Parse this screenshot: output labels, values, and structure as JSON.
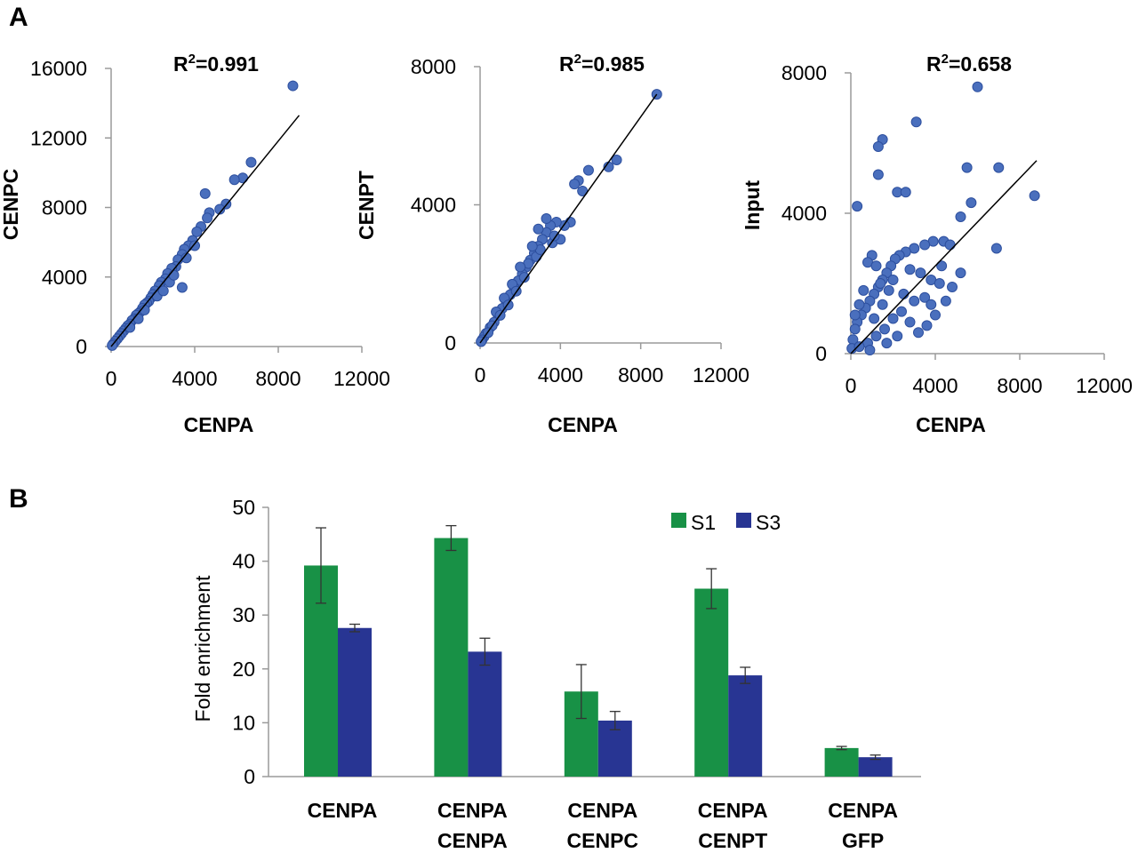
{
  "panels": {
    "a": "A",
    "b": "B"
  },
  "chart_data": [
    {
      "type": "scatter",
      "panel": "A",
      "title": "R",
      "title_sup": "2",
      "title_rest": "=0.991",
      "xlabel": "CENPA",
      "ylabel": "CENPC",
      "xlim": [
        0,
        12000
      ],
      "ylim": [
        0,
        16000
      ],
      "xticks": [
        "0",
        "4000",
        "8000",
        "12000"
      ],
      "yticks": [
        "0",
        "4000",
        "8000",
        "12000",
        "16000"
      ],
      "trendline": [
        [
          0,
          0
        ],
        [
          9000,
          13300
        ]
      ],
      "points": [
        [
          8700,
          15000
        ],
        [
          6700,
          10600
        ],
        [
          6300,
          9700
        ],
        [
          5900,
          9600
        ],
        [
          5500,
          8200
        ],
        [
          5200,
          7900
        ],
        [
          4700,
          7700
        ],
        [
          4500,
          8800
        ],
        [
          4600,
          7400
        ],
        [
          4300,
          6900
        ],
        [
          4100,
          6600
        ],
        [
          3900,
          6100
        ],
        [
          3700,
          5800
        ],
        [
          3500,
          5600
        ],
        [
          3400,
          5300
        ],
        [
          3200,
          5000
        ],
        [
          3100,
          4600
        ],
        [
          2900,
          4500
        ],
        [
          2700,
          4200
        ],
        [
          2600,
          3900
        ],
        [
          2400,
          3700
        ],
        [
          2300,
          3500
        ],
        [
          2100,
          3200
        ],
        [
          2000,
          3000
        ],
        [
          1900,
          2800
        ],
        [
          1800,
          2600
        ],
        [
          1700,
          2500
        ],
        [
          1600,
          2400
        ],
        [
          1500,
          2200
        ],
        [
          1400,
          2000
        ],
        [
          1300,
          1900
        ],
        [
          1200,
          1800
        ],
        [
          1100,
          1600
        ],
        [
          1000,
          1500
        ],
        [
          900,
          1300
        ],
        [
          800,
          1200
        ],
        [
          700,
          1050
        ],
        [
          600,
          900
        ],
        [
          500,
          750
        ],
        [
          400,
          600
        ],
        [
          300,
          450
        ],
        [
          200,
          300
        ],
        [
          100,
          150
        ],
        [
          50,
          60
        ],
        [
          3400,
          3400
        ],
        [
          2800,
          3700
        ],
        [
          3000,
          4100
        ],
        [
          3600,
          5100
        ],
        [
          2200,
          2900
        ],
        [
          1600,
          2100
        ],
        [
          900,
          1100
        ],
        [
          4000,
          5800
        ],
        [
          2500,
          3200
        ],
        [
          1300,
          1600
        ]
      ]
    },
    {
      "type": "scatter",
      "panel": "A",
      "title": "R",
      "title_sup": "2",
      "title_rest": "=0.985",
      "xlabel": "CENPA",
      "ylabel": "CENPT",
      "xlim": [
        0,
        12000
      ],
      "ylim": [
        0,
        8000
      ],
      "xticks": [
        "0",
        "4000",
        "8000",
        "12000"
      ],
      "yticks": [
        "0",
        "4000",
        "8000"
      ],
      "trendline": [
        [
          0,
          0
        ],
        [
          8800,
          7200
        ]
      ],
      "points": [
        [
          8800,
          7200
        ],
        [
          6800,
          5300
        ],
        [
          6400,
          5100
        ],
        [
          5400,
          5000
        ],
        [
          4900,
          4700
        ],
        [
          4700,
          4600
        ],
        [
          5100,
          4400
        ],
        [
          4500,
          3500
        ],
        [
          4200,
          3400
        ],
        [
          3800,
          3500
        ],
        [
          3500,
          3400
        ],
        [
          3300,
          3200
        ],
        [
          3100,
          3000
        ],
        [
          2900,
          2800
        ],
        [
          2700,
          2600
        ],
        [
          2500,
          2400
        ],
        [
          2300,
          2200
        ],
        [
          2100,
          2000
        ],
        [
          1900,
          1800
        ],
        [
          1700,
          1600
        ],
        [
          1500,
          1400
        ],
        [
          1300,
          1200
        ],
        [
          1100,
          1000
        ],
        [
          900,
          800
        ],
        [
          700,
          600
        ],
        [
          500,
          450
        ],
        [
          300,
          280
        ],
        [
          200,
          180
        ],
        [
          100,
          90
        ],
        [
          50,
          40
        ],
        [
          2900,
          3300
        ],
        [
          3300,
          3600
        ],
        [
          2800,
          2500
        ],
        [
          2400,
          2300
        ],
        [
          2000,
          2200
        ],
        [
          1600,
          1700
        ],
        [
          1200,
          1300
        ],
        [
          800,
          900
        ],
        [
          3600,
          2900
        ],
        [
          3000,
          2700
        ],
        [
          2600,
          2800
        ],
        [
          2200,
          1900
        ],
        [
          1800,
          1500
        ],
        [
          1400,
          1100
        ],
        [
          1000,
          800
        ],
        [
          600,
          500
        ],
        [
          400,
          300
        ],
        [
          4000,
          3000
        ],
        [
          3700,
          3100
        ]
      ]
    },
    {
      "type": "scatter",
      "panel": "A",
      "title": "R",
      "title_sup": "2",
      "title_rest": "=0.658",
      "xlabel": "CENPA",
      "ylabel": "Input",
      "xlim": [
        0,
        12000
      ],
      "ylim": [
        0,
        8000
      ],
      "xticks": [
        "0",
        "4000",
        "8000",
        "12000"
      ],
      "yticks": [
        "0",
        "4000",
        "8000"
      ],
      "trendline": [
        [
          0,
          0
        ],
        [
          8800,
          5500
        ]
      ],
      "points": [
        [
          6000,
          7600
        ],
        [
          3100,
          6600
        ],
        [
          1500,
          6100
        ],
        [
          1300,
          5900
        ],
        [
          1300,
          5100
        ],
        [
          5500,
          5300
        ],
        [
          7000,
          5300
        ],
        [
          2200,
          4600
        ],
        [
          2600,
          4600
        ],
        [
          300,
          4200
        ],
        [
          8700,
          4500
        ],
        [
          5700,
          4300
        ],
        [
          5200,
          3900
        ],
        [
          6900,
          3000
        ],
        [
          4400,
          3200
        ],
        [
          3900,
          3200
        ],
        [
          4700,
          3100
        ],
        [
          3500,
          3100
        ],
        [
          3000,
          3000
        ],
        [
          2600,
          2900
        ],
        [
          2300,
          2800
        ],
        [
          2100,
          2700
        ],
        [
          1900,
          2500
        ],
        [
          1700,
          2300
        ],
        [
          1500,
          2100
        ],
        [
          1300,
          1900
        ],
        [
          1100,
          1700
        ],
        [
          900,
          1500
        ],
        [
          700,
          1300
        ],
        [
          500,
          1100
        ],
        [
          300,
          900
        ],
        [
          200,
          700
        ],
        [
          100,
          400
        ],
        [
          50,
          150
        ],
        [
          1000,
          2800
        ],
        [
          800,
          2600
        ],
        [
          1200,
          2500
        ],
        [
          1800,
          1800
        ],
        [
          2800,
          2400
        ],
        [
          3300,
          2300
        ],
        [
          3800,
          2100
        ],
        [
          4200,
          2000
        ],
        [
          4800,
          1900
        ],
        [
          4500,
          1500
        ],
        [
          4000,
          1100
        ],
        [
          3600,
          800
        ],
        [
          3200,
          600
        ],
        [
          2800,
          900
        ],
        [
          2400,
          1200
        ],
        [
          2000,
          1000
        ],
        [
          1600,
          700
        ],
        [
          1200,
          500
        ],
        [
          800,
          300
        ],
        [
          400,
          200
        ],
        [
          1500,
          1400
        ],
        [
          2500,
          1700
        ],
        [
          3000,
          1500
        ],
        [
          3500,
          1600
        ],
        [
          5200,
          2300
        ],
        [
          600,
          1800
        ],
        [
          400,
          1400
        ],
        [
          1400,
          2000
        ],
        [
          2000,
          2100
        ],
        [
          200,
          1100
        ],
        [
          1100,
          1000
        ],
        [
          2200,
          500
        ],
        [
          1700,
          300
        ],
        [
          900,
          100
        ],
        [
          3800,
          1400
        ],
        [
          4300,
          2500
        ]
      ]
    },
    {
      "type": "bar",
      "panel": "B",
      "ylabel": "Fold enrichment",
      "ylim": [
        0,
        50
      ],
      "yticks": [
        "0",
        "10",
        "20",
        "30",
        "40",
        "50"
      ],
      "categories": [
        [
          "CENPA"
        ],
        [
          "CENPA",
          "CENPA"
        ],
        [
          "CENPA",
          "CENPC"
        ],
        [
          "CENPA",
          "CENPT"
        ],
        [
          "CENPA",
          "GFP"
        ]
      ],
      "series": [
        {
          "name": "S1",
          "color": "#189146",
          "values": [
            39.2,
            44.3,
            15.8,
            34.9,
            5.3
          ],
          "errors": [
            7.0,
            2.3,
            5.0,
            3.7,
            0.3
          ]
        },
        {
          "name": "S3",
          "color": "#283593",
          "values": [
            27.6,
            23.2,
            10.4,
            18.8,
            3.6
          ],
          "errors": [
            0.7,
            2.5,
            1.7,
            1.5,
            0.4
          ]
        }
      ]
    }
  ],
  "colors": {
    "point_fill": "#4a6fbd",
    "point_stroke": "#2d4f9e",
    "axis": "#9a9a9a"
  }
}
